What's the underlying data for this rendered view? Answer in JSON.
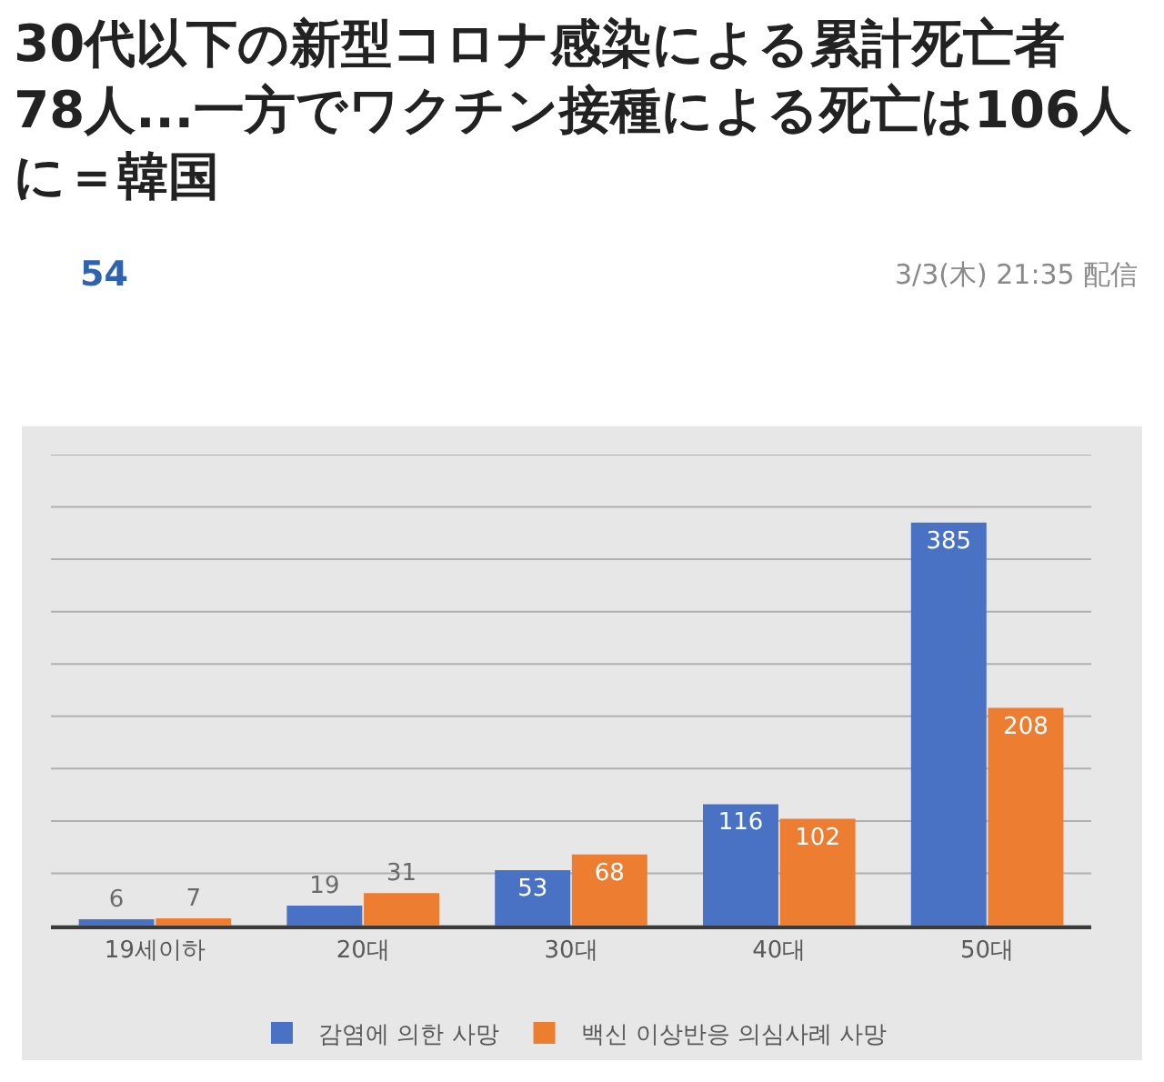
{
  "chart_data": {
    "type": "bar",
    "title": "30代以下の新型コロナ感染による累計死亡者78人...一方でワクチン接種による死亡は106人に＝韓国",
    "annotations": [
      "54",
      "3/3(木) 21:35 配信"
    ],
    "categories": [
      "19세이하",
      "20대",
      "30대",
      "40대",
      "50대"
    ],
    "series": [
      {
        "name": "감염에 의한 사망",
        "color": "#4a72c4",
        "values": [
          6,
          19,
          53,
          116,
          385
        ]
      },
      {
        "name": "백신 이상반응 의심사례 사망",
        "color": "#ed7d31",
        "values": [
          7,
          31,
          68,
          102,
          208
        ]
      }
    ],
    "yticks": [
      {
        "value": 0,
        "label": null
      },
      {
        "value": 50,
        "label": null
      },
      {
        "value": 100,
        "label": null
      },
      {
        "value": 150,
        "label": null
      },
      {
        "value": 200,
        "label": null
      },
      {
        "value": 250,
        "label": null
      },
      {
        "value": 300,
        "label": null
      },
      {
        "value": 350,
        "label": null
      },
      {
        "value": 400,
        "label": null
      },
      {
        "value": 450,
        "label": null
      }
    ],
    "grid": "y",
    "tick_labels": "x",
    "legend": "bottom",
    "data_labels": true
  }
}
